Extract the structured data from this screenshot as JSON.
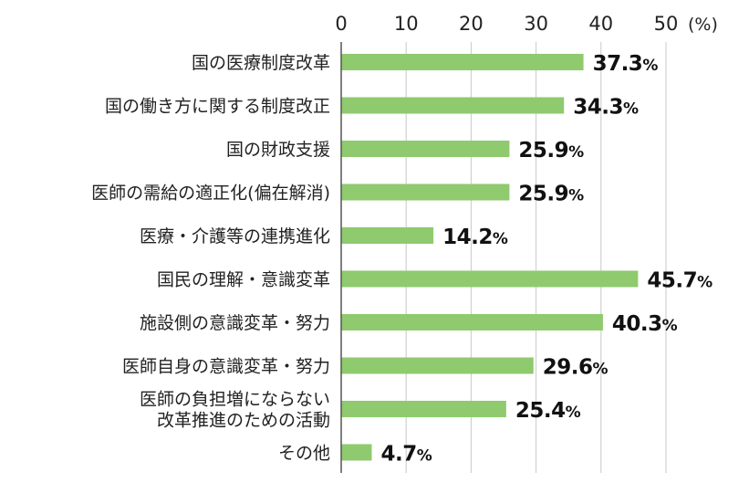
{
  "chart_data": {
    "type": "bar",
    "orientation": "horizontal",
    "categories": [
      [
        "国の医療制度改革"
      ],
      [
        "国の働き方に関する制度改正"
      ],
      [
        "国の財政支援"
      ],
      [
        "医師の需給の適正化(偏在解消)"
      ],
      [
        "医療・介護等の連携進化"
      ],
      [
        "国民の理解・意識変革"
      ],
      [
        "施設側の意識変革・努力"
      ],
      [
        "医師自身の意識変革・努力"
      ],
      [
        "医師の負担増にならない",
        "改革推進のための活動"
      ],
      [
        "その他"
      ]
    ],
    "values": [
      37.3,
      34.3,
      25.9,
      25.9,
      14.2,
      45.7,
      40.3,
      29.6,
      25.4,
      4.7
    ],
    "value_labels": [
      "37.3",
      "34.3",
      "25.9",
      "25.9",
      "14.2",
      "45.7",
      "40.3",
      "29.6",
      "25.4",
      "4.7"
    ],
    "value_suffix": "%",
    "xticks": [
      "0",
      "10",
      "20",
      "30",
      "40",
      "50"
    ],
    "xtick_values": [
      0,
      10,
      20,
      30,
      40,
      50
    ],
    "xunit": "(%)",
    "xlim": [
      0,
      50
    ],
    "grid": true,
    "bar_color": "#8fca6e",
    "grid_color": "#c8c8c8",
    "axis_color": "#555555"
  }
}
